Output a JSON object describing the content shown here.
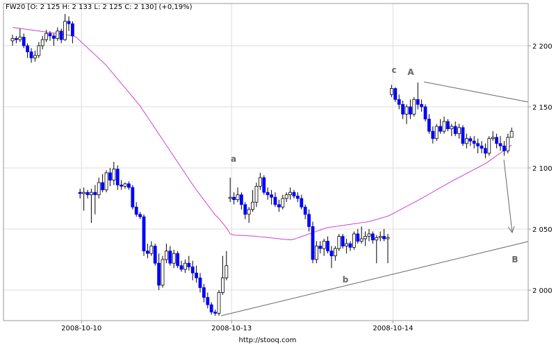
{
  "chart_data": {
    "type": "candlestick",
    "title": "FW20 [O: 2 125  H: 2 133  L: 2 125  C: 2 130] (+0,19%)",
    "footer": "http://stooq.com",
    "annotations": [
      "c",
      "A",
      "a",
      "b",
      "B"
    ],
    "categories": [
      null,
      null,
      null,
      null,
      null,
      null,
      null,
      null,
      null,
      null,
      null,
      null,
      null,
      null,
      null,
      null,
      null,
      null,
      "2008-10-10",
      null,
      null,
      null,
      null,
      null,
      null,
      null,
      null,
      null,
      null,
      null,
      null,
      null,
      null,
      null,
      null,
      null,
      null,
      null,
      null,
      null,
      null,
      null,
      null,
      null,
      null,
      null,
      null,
      null,
      null,
      null,
      null,
      null,
      null,
      null,
      null,
      null,
      null,
      null,
      "2008-10-13",
      null,
      null,
      null,
      null,
      null,
      null,
      null,
      null,
      null,
      null,
      null,
      null,
      null,
      null,
      null,
      null,
      null,
      null,
      null,
      null,
      null,
      null,
      null,
      null,
      null,
      null,
      null,
      null,
      null,
      null,
      null,
      null,
      null,
      null,
      null,
      null,
      null,
      null,
      null,
      null,
      null,
      null,
      "2008-10-14",
      null,
      null,
      null,
      null,
      null,
      null,
      null,
      null,
      null,
      null,
      null,
      null,
      null,
      null,
      null,
      null,
      null,
      null,
      null,
      null,
      null,
      null,
      null,
      null,
      null,
      null,
      null,
      null,
      null,
      null,
      null,
      null
    ],
    "open": [
      2204,
      2206,
      2205,
      2207,
      2200,
      2195,
      2190,
      2192,
      2200,
      2205,
      2210,
      2208,
      2206,
      2212,
      2205,
      2220,
      2218,
      null,
      2080,
      2079,
      2080,
      2078,
      2080,
      2078,
      2088,
      2082,
      2096,
      2090,
      2099,
      2086,
      2085,
      2087,
      2084,
      2068,
      2062,
      2060,
      2032,
      2030,
      2036,
      2022,
      2004,
      2025,
      2032,
      2022,
      2030,
      2020,
      2017,
      2022,
      2019,
      2014,
      2010,
      2002,
      1994,
      1988,
      1982,
      1981,
      1998,
      2010,
      2075,
      2076,
      2074,
      2078,
      2070,
      2062,
      2066,
      2072,
      2085,
      2092,
      2080,
      2078,
      2076,
      2070,
      2068,
      2075,
      2078,
      2080,
      2077,
      2075,
      2068,
      2062,
      2052,
      2025,
      2036,
      2034,
      2040,
      2032,
      2028,
      2034,
      2044,
      2036,
      2038,
      2035,
      2046,
      2040,
      2042,
      2044,
      2046,
      2041,
      2043,
      2044,
      2042,
      2160,
      2165,
      2156,
      2152,
      2144,
      2150,
      2144,
      2156,
      2152,
      2150,
      2140,
      2130,
      2124,
      2134,
      2130,
      2138,
      2132,
      2134,
      2128,
      2133,
      2120,
      2124,
      2122,
      2120,
      2118,
      2116,
      2112,
      2124,
      2125,
      2120,
      2118,
      2114,
      2125
    ],
    "high": [
      2209,
      2208,
      2214,
      2210,
      2202,
      2198,
      2196,
      2203,
      2208,
      2213,
      2212,
      2210,
      2215,
      2214,
      2226,
      2224,
      2220,
      null,
      2083,
      2084,
      2082,
      2083,
      2086,
      2092,
      2095,
      2098,
      2100,
      2105,
      2102,
      2090,
      2088,
      2089,
      2086,
      2072,
      2064,
      2062,
      2038,
      2040,
      2038,
      2030,
      2028,
      2038,
      2036,
      2033,
      2032,
      2024,
      2025,
      2028,
      2024,
      2020,
      2014,
      2005,
      1998,
      1990,
      1984,
      2000,
      2028,
      2032,
      2092,
      2080,
      2084,
      2080,
      2072,
      2068,
      2082,
      2088,
      2096,
      2094,
      2084,
      2082,
      2080,
      2074,
      2078,
      2080,
      2084,
      2082,
      2080,
      2078,
      2070,
      2066,
      2056,
      2040,
      2040,
      2042,
      2044,
      2036,
      2036,
      2046,
      2046,
      2042,
      2040,
      2048,
      2050,
      2052,
      2048,
      2050,
      2048,
      2045,
      2048,
      2050,
      2046,
      2168,
      2166,
      2160,
      2155,
      2152,
      2156,
      2158,
      2170,
      2156,
      2152,
      2144,
      2134,
      2136,
      2140,
      2142,
      2140,
      2136,
      2138,
      2136,
      2135,
      2128,
      2126,
      2126,
      2124,
      2122,
      2120,
      2126,
      2130,
      2128,
      2126,
      2122,
      2128,
      2133
    ],
    "low": [
      2200,
      2202,
      2203,
      2198,
      2190,
      2186,
      2187,
      2190,
      2197,
      2203,
      2204,
      2200,
      2204,
      2202,
      2204,
      2212,
      2202,
      null,
      2075,
      2065,
      2075,
      2055,
      2062,
      2075,
      2080,
      2080,
      2085,
      2086,
      2082,
      2082,
      2083,
      2082,
      2066,
      2060,
      2058,
      2028,
      2026,
      2028,
      2020,
      2000,
      2002,
      2022,
      2020,
      2018,
      2018,
      2015,
      2014,
      2016,
      2008,
      2006,
      1998,
      1990,
      1985,
      1980,
      1979,
      1979,
      1996,
      2008,
      2072,
      2070,
      2072,
      2066,
      2058,
      2055,
      2064,
      2068,
      2082,
      2078,
      2074,
      2070,
      2068,
      2064,
      2066,
      2072,
      2074,
      2075,
      2072,
      2066,
      2058,
      2048,
      2022,
      2022,
      2030,
      2028,
      2030,
      2018,
      2024,
      2032,
      2034,
      2030,
      2032,
      2033,
      2038,
      2038,
      2036,
      2040,
      2038,
      2022,
      2040,
      2040,
      2022,
      2158,
      2154,
      2148,
      2140,
      2136,
      2140,
      2142,
      2148,
      2146,
      2138,
      2128,
      2120,
      2122,
      2128,
      2128,
      2130,
      2126,
      2126,
      2124,
      2118,
      2116,
      2118,
      2116,
      2112,
      2112,
      2108,
      2110,
      2122,
      2116,
      2114,
      2110,
      2112,
      2125
    ],
    "close": [
      2206,
      2205,
      2207,
      2200,
      2195,
      2190,
      2192,
      2200,
      2205,
      2210,
      2208,
      2206,
      2212,
      2205,
      2220,
      2218,
      2208,
      null,
      2079,
      2080,
      2078,
      2080,
      2078,
      2088,
      2082,
      2096,
      2090,
      2099,
      2086,
      2085,
      2087,
      2084,
      2068,
      2062,
      2060,
      2032,
      2030,
      2036,
      2022,
      2004,
      2025,
      2032,
      2022,
      2030,
      2020,
      2017,
      2022,
      2019,
      2014,
      2010,
      2002,
      1994,
      1988,
      1982,
      1981,
      1998,
      2010,
      2020,
      2076,
      2074,
      2078,
      2070,
      2062,
      2066,
      2072,
      2085,
      2092,
      2080,
      2078,
      2076,
      2070,
      2068,
      2075,
      2078,
      2080,
      2077,
      2075,
      2068,
      2062,
      2052,
      2025,
      2036,
      2034,
      2040,
      2032,
      2028,
      2034,
      2044,
      2036,
      2038,
      2035,
      2046,
      2040,
      2042,
      2044,
      2046,
      2041,
      2043,
      2044,
      2042,
      2043,
      2165,
      2156,
      2152,
      2144,
      2150,
      2144,
      2156,
      2152,
      2150,
      2140,
      2130,
      2124,
      2134,
      2130,
      2138,
      2132,
      2134,
      2128,
      2133,
      2120,
      2124,
      2122,
      2120,
      2118,
      2116,
      2112,
      2124,
      2125,
      2120,
      2118,
      2114,
      2125,
      2130
    ],
    "up_color": "#ffffff",
    "down_color": "#0000ff",
    "ma": {
      "color": "#d040d0",
      "values": [
        2215,
        2214.6,
        2214.2,
        2213.7,
        2213.3,
        2212.9,
        2212.5,
        2212.1,
        2211.6,
        2211.2,
        2210.8,
        2210.4,
        2210,
        2209.6,
        2209.1,
        2208.7,
        2208.3,
        2206.9,
        2204,
        2201.2,
        2198.3,
        2195.4,
        2192.6,
        2189.7,
        2186.9,
        2183.8,
        2180.1,
        2176.5,
        2172.8,
        2169.1,
        2165.5,
        2161.8,
        2158.2,
        2154.5,
        2150.7,
        2146.1,
        2141.5,
        2136.9,
        2132.3,
        2127.7,
        2123.1,
        2118.5,
        2113.9,
        2109.3,
        2104.7,
        2100.1,
        2095.5,
        2090.9,
        2086.3,
        2082,
        2077.9,
        2073.8,
        2069.7,
        2065.6,
        2061.5,
        2058.6,
        2054.8,
        2051,
        2046,
        2045,
        2044.9,
        2044.8,
        2044.6,
        2044.4,
        2044.2,
        2044,
        2043.7,
        2043.4,
        2043,
        2042.7,
        2042.4,
        2042,
        2041.7,
        2041.4,
        2041.1,
        2041.6,
        2042.7,
        2043.8,
        2044.8,
        2045.9,
        2047,
        2048.1,
        2049.2,
        2050.3,
        2051.3,
        2051.6,
        2052,
        2052.5,
        2052.9,
        2053.4,
        2053.8,
        2054.3,
        2054.7,
        2055.2,
        2055.6,
        2056.1,
        2057,
        2057.8,
        2058.7,
        2059.6,
        2060.5,
        2062,
        2063.6,
        2065.2,
        2066.9,
        2068.5,
        2070.1,
        2071.7,
        2073.4,
        2075.1,
        2076.8,
        2078.6,
        2080.3,
        2082.1,
        2083.8,
        2085.5,
        2087.3,
        2089,
        2090.6,
        2092.2,
        2093.8,
        2095.5,
        2097.1,
        2098.7,
        2100.3,
        2101.9,
        2103.5,
        2105.7,
        2107.9,
        2110,
        2112.2,
        2114.4,
        2116.6,
        2118.7
      ]
    },
    "ylim": [
      1975,
      2234.6
    ],
    "yticks": [
      {
        "value": 2000,
        "label": "2 000"
      },
      {
        "value": 2050,
        "label": "2 050"
      },
      {
        "value": 2100,
        "label": "2 100"
      },
      {
        "value": 2150,
        "label": "2 150"
      },
      {
        "value": 2200,
        "label": "2 200"
      }
    ],
    "grid": true
  }
}
